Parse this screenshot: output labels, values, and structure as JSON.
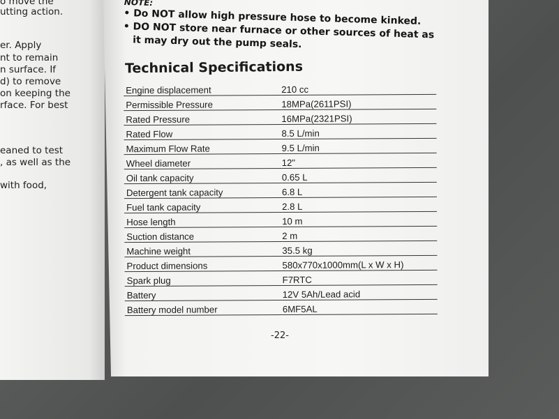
{
  "left_page_fragments": [
    "o move the",
    "utting action.",
    "er. Apply",
    "nt to remain",
    "n surface. If",
    "d) to remove",
    "on keeping the",
    "rface. For best",
    "eaned to test",
    ", as well as the",
    " with food,"
  ],
  "note": {
    "heading": "NOTE:",
    "bullets": [
      "Do NOT allow high pressure hose to become kinked.",
      "DO NOT store near furnace or other sources of heat as it may dry out the pump seals."
    ]
  },
  "section_title": "Technical Specifications",
  "specs": [
    {
      "label": "Engine displacement",
      "value": "210 cc"
    },
    {
      "label": "Permissible Pressure",
      "value": "18MPa(2611PSI)"
    },
    {
      "label": "Rated Pressure",
      "value": "16MPa(2321PSI)"
    },
    {
      "label": "Rated Flow",
      "value": "8.5 L/min"
    },
    {
      "label": "Maximum Flow Rate",
      "value": "9.5 L/min"
    },
    {
      "label": "Wheel diameter",
      "value": "12\""
    },
    {
      "label": "Oil tank capacity",
      "value": "0.65 L"
    },
    {
      "label": "Detergent tank capacity",
      "value": "6.8 L"
    },
    {
      "label": "Fuel tank capacity",
      "value": "2.8 L"
    },
    {
      "label": "Hose length",
      "value": "10 m"
    },
    {
      "label": "Suction distance",
      "value": "2 m"
    },
    {
      "label": "Machine weight",
      "value": "35.5 kg"
    },
    {
      "label": "Product dimensions",
      "value": "580x770x1000mm(L x W x H)"
    },
    {
      "label": "Spark plug",
      "value": "F7RTC"
    },
    {
      "label": "Battery",
      "value": "12V 5Ah/Lead acid"
    },
    {
      "label": "Battery model number",
      "value": "6MF5AL"
    }
  ],
  "page_number": "-22-"
}
